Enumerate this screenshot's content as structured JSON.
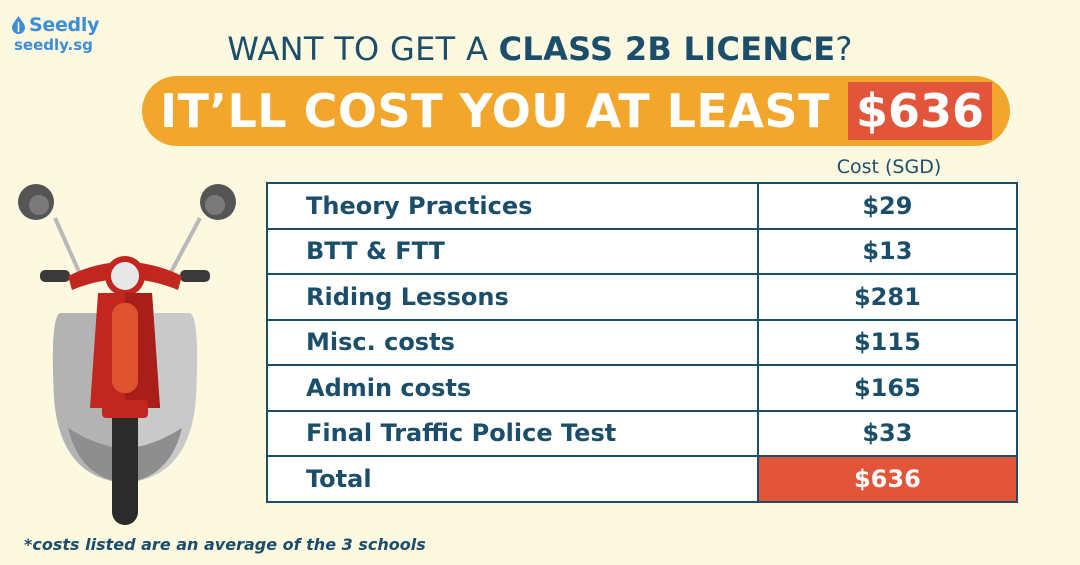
{
  "brand": {
    "name": "Seedly",
    "url": "seedly.sg",
    "color": "#3d8ed6"
  },
  "headline": {
    "prefix": "WANT TO GET A ",
    "highlight": "CLASS 2B LICENCE",
    "suffix": "?"
  },
  "banner": {
    "text": "IT’LL COST YOU AT LEAST",
    "amount": "$636",
    "color": "#f2a62b",
    "amount_color": "#e2553a"
  },
  "table": {
    "column_header": "Cost (SGD)",
    "rows": [
      {
        "label": "Theory Practices",
        "value": "$29"
      },
      {
        "label": "BTT & FTT",
        "value": "$13"
      },
      {
        "label": "Riding Lessons",
        "value": "$281"
      },
      {
        "label": "Misc. costs",
        "value": "$115"
      },
      {
        "label": "Admin costs",
        "value": "$165"
      },
      {
        "label": "Final Traffic Police Test",
        "value": "$33"
      }
    ],
    "total": {
      "label": "Total",
      "value": "$636"
    }
  },
  "footnote": "*costs listed are an average of the 3 schools",
  "illustration": "red-scooter-icon"
}
